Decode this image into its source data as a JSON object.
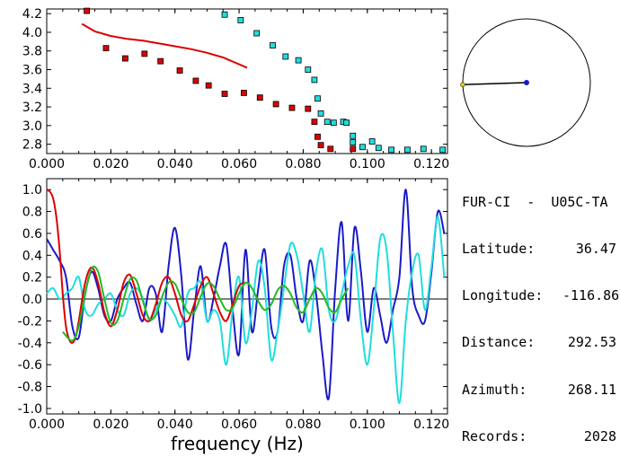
{
  "station": {
    "pair": "FUR-CI  -  U05C-TA",
    "latitude_label": "Latitude:",
    "latitude": "36.47",
    "longitude_label": "Longitude:",
    "longitude": "-116.86",
    "distance_label": "Distance:",
    "distance": "292.53",
    "azimuth_label": "Azimuth:",
    "azimuth": "268.11",
    "records_label": "Records:",
    "records": "2028"
  },
  "colors": {
    "red": "#dd0000",
    "cyan": "#22dddd",
    "blue": "#1a1ac8",
    "green": "#22bb22",
    "black": "#000000"
  },
  "chart_data": [
    {
      "type": "scatter",
      "xlabel": "",
      "ylabel": "",
      "xlim": [
        0.0,
        0.125
      ],
      "ylim": [
        2.7,
        4.25
      ],
      "x_ticks": [
        "0.000",
        "0.020",
        "0.040",
        "0.060",
        "0.080",
        "0.100",
        "0.120"
      ],
      "y_ticks": [
        "2.8",
        "3.0",
        "3.2",
        "3.4",
        "3.6",
        "3.8",
        "4.0",
        "4.2"
      ],
      "series": [
        {
          "color": "#dd0000",
          "style": "square-markers",
          "points": [
            [
              0.0125,
              4.23
            ],
            [
              0.0185,
              3.83
            ],
            [
              0.0245,
              3.72
            ],
            [
              0.0305,
              3.77
            ],
            [
              0.0355,
              3.69
            ],
            [
              0.0415,
              3.59
            ],
            [
              0.0465,
              3.48
            ],
            [
              0.0505,
              3.43
            ],
            [
              0.0555,
              3.34
            ],
            [
              0.0615,
              3.35
            ],
            [
              0.0665,
              3.3
            ],
            [
              0.0715,
              3.23
            ],
            [
              0.0765,
              3.19
            ],
            [
              0.0815,
              3.18
            ],
            [
              0.0835,
              3.04
            ],
            [
              0.0845,
              2.88
            ],
            [
              0.0855,
              2.79
            ],
            [
              0.0885,
              2.75
            ],
            [
              0.0955,
              2.75
            ]
          ]
        },
        {
          "color": "#22dddd",
          "style": "square-markers",
          "points": [
            [
              0.0555,
              4.19
            ],
            [
              0.0605,
              4.13
            ],
            [
              0.0655,
              3.99
            ],
            [
              0.0705,
              3.86
            ],
            [
              0.0745,
              3.74
            ],
            [
              0.0785,
              3.7
            ],
            [
              0.0815,
              3.6
            ],
            [
              0.0835,
              3.49
            ],
            [
              0.0845,
              3.29
            ],
            [
              0.0855,
              3.13
            ],
            [
              0.0875,
              3.04
            ],
            [
              0.0895,
              3.03
            ],
            [
              0.0925,
              3.04
            ],
            [
              0.0935,
              3.03
            ],
            [
              0.0955,
              2.89
            ],
            [
              0.0955,
              2.82
            ],
            [
              0.0985,
              2.77
            ],
            [
              0.1015,
              2.83
            ],
            [
              0.1035,
              2.76
            ],
            [
              0.1075,
              2.74
            ],
            [
              0.1125,
              2.74
            ],
            [
              0.1175,
              2.75
            ],
            [
              0.1235,
              2.74
            ]
          ]
        },
        {
          "color": "#dd0000",
          "style": "line",
          "points": [
            [
              0.011,
              4.09
            ],
            [
              0.015,
              4.01
            ],
            [
              0.02,
              3.96
            ],
            [
              0.025,
              3.93
            ],
            [
              0.03,
              3.91
            ],
            [
              0.035,
              3.88
            ],
            [
              0.04,
              3.85
            ],
            [
              0.045,
              3.82
            ],
            [
              0.05,
              3.78
            ],
            [
              0.055,
              3.73
            ],
            [
              0.0625,
              3.62
            ]
          ]
        }
      ]
    },
    {
      "type": "line",
      "xlabel": "frequency (Hz)",
      "ylabel": "",
      "xlim": [
        0.0,
        0.125
      ],
      "ylim": [
        -1.05,
        1.1
      ],
      "x_ticks": [
        "0.000",
        "0.020",
        "0.040",
        "0.060",
        "0.080",
        "0.100",
        "0.120"
      ],
      "y_ticks": [
        "-1.0",
        "-0.8",
        "-0.6",
        "-0.4",
        "-0.2",
        "0.0",
        "0.2",
        "0.4",
        "0.6",
        "0.8",
        "1.0"
      ],
      "zero_line": true,
      "series": [
        {
          "color": "#1a1ac8",
          "x": [
            0.0,
            0.002,
            0.004,
            0.006,
            0.008,
            0.01,
            0.012,
            0.014,
            0.016,
            0.018,
            0.02,
            0.022,
            0.024,
            0.026,
            0.028,
            0.03,
            0.032,
            0.034,
            0.036,
            0.038,
            0.04,
            0.042,
            0.044,
            0.046,
            0.048,
            0.05,
            0.052,
            0.054,
            0.056,
            0.058,
            0.06,
            0.062,
            0.064,
            0.066,
            0.068,
            0.07,
            0.072,
            0.074,
            0.076,
            0.078,
            0.08,
            0.082,
            0.084,
            0.086,
            0.088,
            0.09,
            0.092,
            0.094,
            0.096,
            0.098,
            0.1,
            0.102,
            0.104,
            0.106,
            0.108,
            0.11,
            0.112,
            0.114,
            0.116,
            0.118,
            0.12,
            0.122,
            0.124
          ],
          "y": [
            0.55,
            0.45,
            0.35,
            0.2,
            -0.25,
            -0.35,
            0.05,
            0.25,
            0.1,
            -0.15,
            -0.2,
            0.0,
            0.1,
            0.15,
            -0.05,
            -0.2,
            0.1,
            0.05,
            -0.3,
            0.3,
            0.65,
            0.2,
            -0.55,
            -0.1,
            0.3,
            -0.2,
            0.0,
            0.3,
            0.5,
            -0.1,
            -0.5,
            0.45,
            -0.3,
            0.1,
            0.45,
            -0.25,
            -0.3,
            0.3,
            0.4,
            0.0,
            -0.2,
            0.35,
            0.05,
            -0.5,
            -0.9,
            0.1,
            0.7,
            -0.2,
            0.65,
            0.25,
            -0.3,
            0.1,
            -0.15,
            -0.4,
            -0.1,
            0.2,
            1.0,
            0.1,
            -0.15,
            -0.2,
            0.25,
            0.8,
            0.6
          ]
        },
        {
          "color": "#22dddd",
          "x": [
            0.0,
            0.002,
            0.004,
            0.006,
            0.008,
            0.01,
            0.012,
            0.014,
            0.016,
            0.018,
            0.02,
            0.022,
            0.024,
            0.026,
            0.028,
            0.03,
            0.032,
            0.034,
            0.036,
            0.038,
            0.04,
            0.042,
            0.044,
            0.046,
            0.048,
            0.05,
            0.052,
            0.054,
            0.056,
            0.058,
            0.06,
            0.062,
            0.064,
            0.066,
            0.068,
            0.07,
            0.072,
            0.074,
            0.076,
            0.078,
            0.08,
            0.082,
            0.084,
            0.086,
            0.088,
            0.09,
            0.092,
            0.094,
            0.096,
            0.098,
            0.1,
            0.102,
            0.104,
            0.106,
            0.108,
            0.11,
            0.112,
            0.114,
            0.116,
            0.118,
            0.12,
            0.122,
            0.124
          ],
          "y": [
            0.05,
            0.1,
            0.0,
            0.05,
            0.1,
            0.2,
            -0.1,
            -0.15,
            -0.05,
            0.0,
            0.05,
            -0.1,
            -0.15,
            0.05,
            0.1,
            0.0,
            -0.2,
            -0.1,
            0.0,
            -0.05,
            -0.15,
            -0.25,
            0.05,
            0.1,
            0.15,
            -0.2,
            -0.1,
            -0.2,
            -0.6,
            -0.1,
            0.2,
            -0.4,
            -0.1,
            0.35,
            0.1,
            -0.55,
            -0.3,
            0.1,
            0.5,
            0.4,
            0.05,
            -0.3,
            0.25,
            0.45,
            -0.1,
            -0.2,
            0.05,
            0.3,
            0.4,
            -0.2,
            -0.6,
            -0.1,
            0.55,
            0.45,
            -0.3,
            -0.95,
            -0.2,
            0.25,
            0.4,
            -0.1,
            0.3,
            0.75,
            0.2
          ]
        },
        {
          "color": "#dd0000",
          "x": [
            0.0,
            0.001,
            0.002,
            0.003,
            0.004,
            0.005,
            0.006,
            0.007,
            0.008,
            0.009,
            0.01,
            0.012,
            0.014,
            0.016,
            0.018,
            0.02,
            0.022,
            0.024,
            0.026,
            0.028,
            0.03,
            0.032,
            0.034,
            0.036,
            0.038,
            0.04,
            0.042,
            0.044,
            0.046,
            0.048,
            0.05,
            0.052,
            0.054,
            0.056,
            0.058,
            0.06,
            0.062
          ],
          "y": [
            1.0,
            0.98,
            0.92,
            0.75,
            0.45,
            0.05,
            -0.25,
            -0.37,
            -0.4,
            -0.35,
            -0.2,
            0.15,
            0.29,
            0.15,
            -0.12,
            -0.25,
            -0.1,
            0.15,
            0.22,
            0.05,
            -0.15,
            -0.2,
            -0.05,
            0.15,
            0.2,
            0.05,
            -0.15,
            -0.2,
            -0.05,
            0.12,
            0.2,
            0.05,
            -0.12,
            -0.2,
            -0.05,
            0.12,
            0.15
          ]
        },
        {
          "color": "#22bb22",
          "x": [
            0.005,
            0.008,
            0.01,
            0.012,
            0.014,
            0.016,
            0.018,
            0.02,
            0.022,
            0.024,
            0.026,
            0.028,
            0.03,
            0.032,
            0.034,
            0.036,
            0.038,
            0.04,
            0.042,
            0.044,
            0.046,
            0.048,
            0.05,
            0.052,
            0.054,
            0.056,
            0.058,
            0.06,
            0.062,
            0.064,
            0.066,
            0.068,
            0.07,
            0.072,
            0.074,
            0.076,
            0.078,
            0.08,
            0.082,
            0.084,
            0.086,
            0.088,
            0.09,
            0.092,
            0.094
          ],
          "y": [
            -0.3,
            -0.38,
            -0.25,
            0.05,
            0.28,
            0.25,
            0.0,
            -0.22,
            -0.2,
            0.0,
            0.18,
            0.17,
            -0.02,
            -0.18,
            -0.15,
            0.02,
            0.15,
            0.14,
            0.0,
            -0.12,
            -0.12,
            0.02,
            0.14,
            0.12,
            0.0,
            -0.1,
            -0.08,
            0.05,
            0.15,
            0.1,
            -0.02,
            -0.1,
            -0.05,
            0.08,
            0.12,
            0.05,
            -0.08,
            -0.12,
            0.0,
            0.1,
            0.05,
            -0.08,
            -0.12,
            0.0,
            0.1
          ]
        }
      ]
    }
  ],
  "map": {
    "station_azimuth_deg": 268.11
  }
}
